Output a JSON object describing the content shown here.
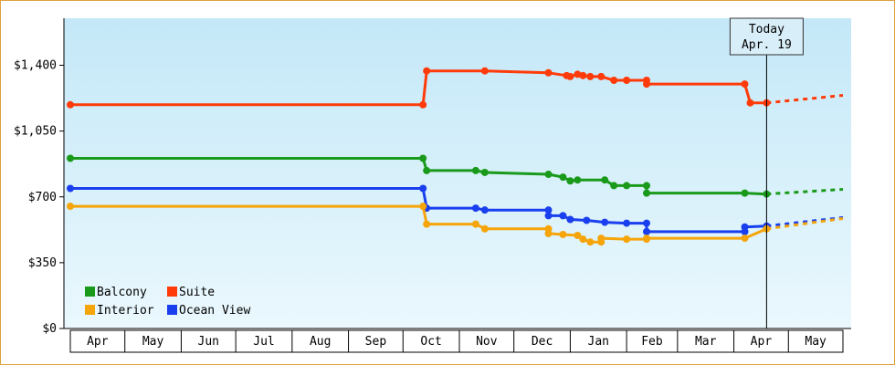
{
  "chart_data": {
    "type": "line",
    "step": true,
    "y_ticks": [
      "$0",
      "$350",
      "$700",
      "$1,050",
      "$1,400"
    ],
    "y_tick_values": [
      0,
      350,
      700,
      1050,
      1400
    ],
    "ylim": [
      0,
      1650
    ],
    "x_months": [
      "Apr",
      "May",
      "Jun",
      "Jul",
      "Aug",
      "Sep",
      "Oct",
      "Nov",
      "Dec",
      "Jan",
      "Feb",
      "Mar",
      "Apr",
      "May"
    ],
    "x_start": "2016-04-01",
    "x_end": "2017-05-31",
    "today": {
      "title": "Today",
      "date_label": "Apr. 19",
      "date": "2017-04-19"
    },
    "legend_position": "bottom-left",
    "grid": false,
    "series": [
      {
        "name": "Suite",
        "color": "#ff3b0a",
        "points": [
          [
            "2016-04-01",
            1190
          ],
          [
            "2016-10-12",
            1190
          ],
          [
            "2016-10-14",
            1370
          ],
          [
            "2016-11-15",
            1370
          ],
          [
            "2016-12-20",
            1360
          ],
          [
            "2016-12-30",
            1345
          ],
          [
            "2017-01-01",
            1340
          ],
          [
            "2017-01-05",
            1352
          ],
          [
            "2017-01-08",
            1345
          ],
          [
            "2017-01-12",
            1340
          ],
          [
            "2017-01-18",
            1340
          ],
          [
            "2017-01-25",
            1320
          ],
          [
            "2017-02-01",
            1320
          ],
          [
            "2017-02-12",
            1320
          ],
          [
            "2017-02-12",
            1300
          ],
          [
            "2017-04-07",
            1300
          ],
          [
            "2017-04-10",
            1200
          ],
          [
            "2017-04-19",
            1200
          ]
        ],
        "forecast": [
          [
            "2017-04-19",
            1200
          ],
          [
            "2017-05-31",
            1240
          ]
        ]
      },
      {
        "name": "Balcony",
        "color": "#1a9a1a",
        "points": [
          [
            "2016-04-01",
            905
          ],
          [
            "2016-10-12",
            905
          ],
          [
            "2016-10-14",
            840
          ],
          [
            "2016-11-10",
            840
          ],
          [
            "2016-11-15",
            830
          ],
          [
            "2016-12-20",
            820
          ],
          [
            "2016-12-28",
            805
          ],
          [
            "2017-01-01",
            785
          ],
          [
            "2017-01-05",
            790
          ],
          [
            "2017-01-20",
            790
          ],
          [
            "2017-01-25",
            760
          ],
          [
            "2017-02-01",
            760
          ],
          [
            "2017-02-12",
            760
          ],
          [
            "2017-02-12",
            720
          ],
          [
            "2017-04-07",
            720
          ],
          [
            "2017-04-19",
            715
          ]
        ],
        "forecast": [
          [
            "2017-04-19",
            715
          ],
          [
            "2017-05-31",
            740
          ]
        ]
      },
      {
        "name": "Ocean View",
        "color": "#1a3fee",
        "points": [
          [
            "2016-04-01",
            745
          ],
          [
            "2016-10-12",
            745
          ],
          [
            "2016-10-14",
            640
          ],
          [
            "2016-11-10",
            640
          ],
          [
            "2016-11-15",
            630
          ],
          [
            "2016-12-20",
            630
          ],
          [
            "2016-12-20",
            600
          ],
          [
            "2016-12-28",
            600
          ],
          [
            "2017-01-01",
            580
          ],
          [
            "2017-01-10",
            575
          ],
          [
            "2017-01-20",
            565
          ],
          [
            "2017-02-01",
            560
          ],
          [
            "2017-02-12",
            560
          ],
          [
            "2017-02-12",
            515
          ],
          [
            "2017-04-07",
            515
          ],
          [
            "2017-04-07",
            540
          ],
          [
            "2017-04-19",
            545
          ]
        ],
        "forecast": [
          [
            "2017-04-19",
            545
          ],
          [
            "2017-05-31",
            590
          ]
        ]
      },
      {
        "name": "Interior",
        "color": "#f5a50a",
        "points": [
          [
            "2016-04-01",
            650
          ],
          [
            "2016-10-12",
            650
          ],
          [
            "2016-10-14",
            555
          ],
          [
            "2016-11-10",
            555
          ],
          [
            "2016-11-15",
            530
          ],
          [
            "2016-12-20",
            530
          ],
          [
            "2016-12-20",
            505
          ],
          [
            "2016-12-28",
            500
          ],
          [
            "2017-01-05",
            495
          ],
          [
            "2017-01-08",
            475
          ],
          [
            "2017-01-12",
            460
          ],
          [
            "2017-01-18",
            460
          ],
          [
            "2017-01-18",
            480
          ],
          [
            "2017-02-01",
            475
          ],
          [
            "2017-02-12",
            475
          ],
          [
            "2017-02-12",
            480
          ],
          [
            "2017-04-07",
            480
          ],
          [
            "2017-04-19",
            530
          ]
        ],
        "forecast": [
          [
            "2017-04-19",
            530
          ],
          [
            "2017-05-31",
            585
          ]
        ]
      }
    ],
    "legend": [
      {
        "name": "Balcony",
        "color": "#1a9a1a"
      },
      {
        "name": "Suite",
        "color": "#ff3b0a"
      },
      {
        "name": "Interior",
        "color": "#f5a50a"
      },
      {
        "name": "Ocean View",
        "color": "#1a3fee"
      }
    ]
  }
}
